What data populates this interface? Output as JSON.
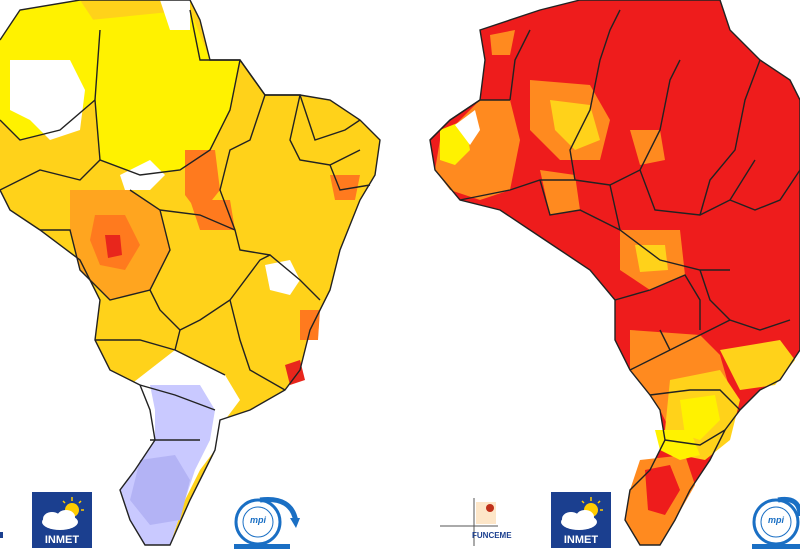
{
  "maps": [
    {
      "id": "left",
      "palette": {
        "light_yellow": "#fff200",
        "yellow_orange": "#ffd21a",
        "orange": "#ffa51f",
        "dark_orange": "#ff7a1e",
        "red": "#e8261c",
        "white": "#ffffff",
        "lavender": "#c9c9ff",
        "light_blue": "#b3b3f5"
      }
    },
    {
      "id": "right",
      "palette": {
        "red": "#ee1c1c",
        "orange": "#ff8a1f",
        "yellow": "#ffd21a",
        "light_yellow": "#fff200",
        "white": "#ffffff"
      }
    }
  ],
  "logos": {
    "inmet_left": {
      "text": "INMET",
      "colors": {
        "box": "#1b3f8f",
        "sun": "#ffcc00"
      }
    },
    "inmet_right": {
      "text": "INMET",
      "colors": {
        "box": "#1b3f8f",
        "sun": "#ffcc00"
      }
    },
    "funceme": {
      "text": "FUNCEME",
      "colors": {
        "text": "#1b3f8f",
        "dot": "#c0301a"
      }
    },
    "mpi_left": {
      "text": "mpi",
      "colors": {
        "ring": "#1a6fc4",
        "arc": "#1a6fc4"
      }
    },
    "mpi_right": {
      "text": "mpi",
      "colors": {
        "ring": "#1a6fc4",
        "arc": "#1a6fc4"
      }
    },
    "left_edge_mark": {
      "text": ""
    }
  }
}
